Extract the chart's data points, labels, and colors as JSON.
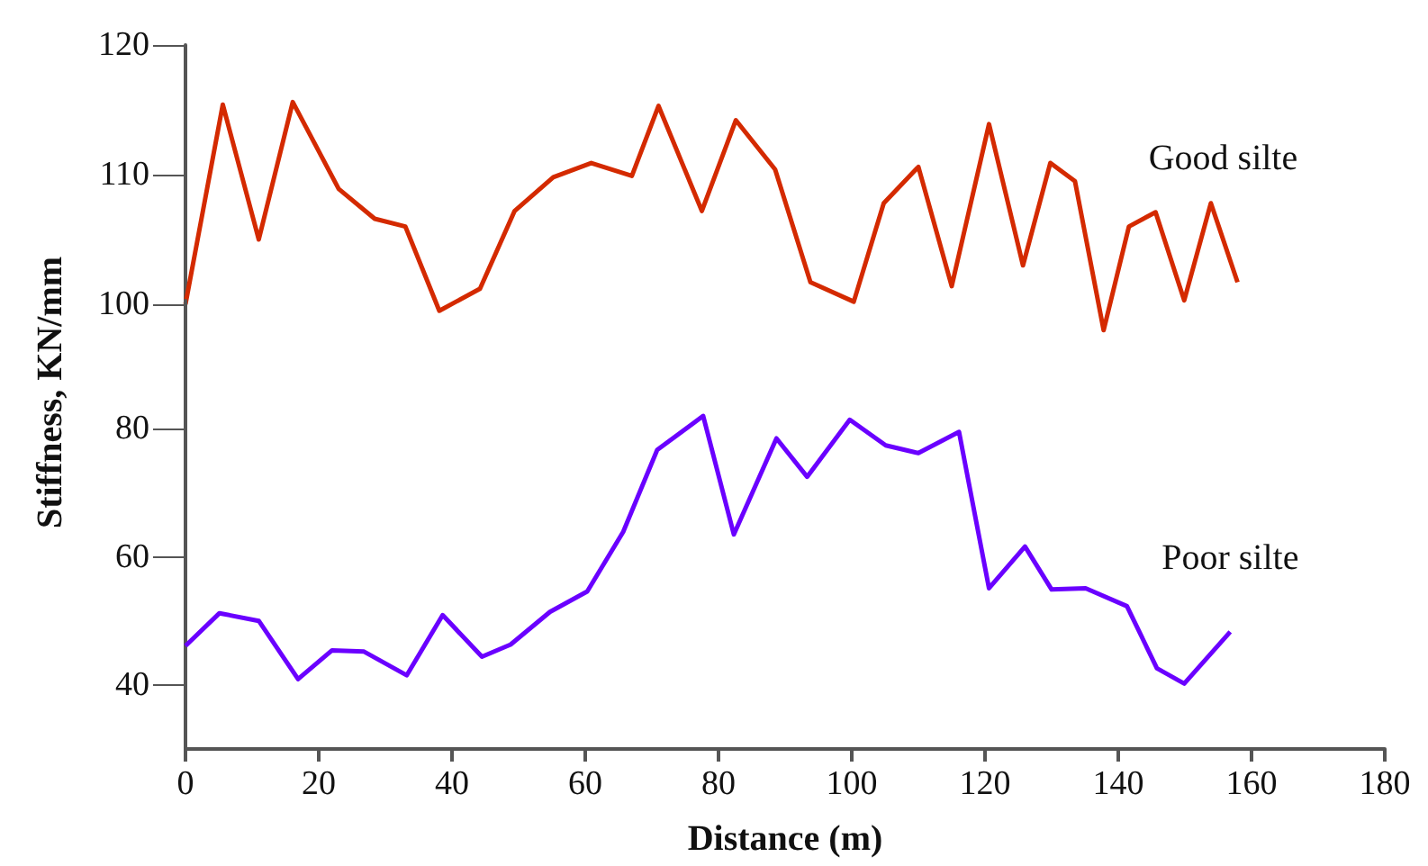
{
  "chart_data": [
    {
      "type": "line",
      "ylabel": "Stiffness, KN/mm",
      "xlim": [
        0,
        180
      ],
      "xticks": [
        0,
        20,
        40,
        60,
        80,
        100,
        120,
        140,
        160,
        180
      ],
      "ylim": [
        95,
        120
      ],
      "yticks": [
        100,
        110,
        120
      ],
      "tick_labels": "y",
      "grid": false,
      "legend": false,
      "marker": "none",
      "line_style": "solid",
      "series": [
        {
          "name": "Good silte",
          "color": "#d42a00",
          "x": [
            0,
            5.6,
            11,
            16.1,
            23,
            28.4,
            33,
            38.1,
            44.2,
            49.4,
            55.2,
            60.9,
            67,
            71,
            77.5,
            82.6,
            88.5,
            93.8,
            100.3,
            104.8,
            110,
            115,
            120.6,
            125.7,
            129.8,
            133.5,
            137.8,
            141.6,
            145.6,
            149.9,
            153.9,
            157.9
          ],
          "values": [
            100,
            115.4,
            105,
            115.6,
            108.9,
            106.6,
            106,
            99.5,
            101.2,
            107.2,
            109.8,
            110.9,
            109.9,
            115.3,
            107.2,
            114.2,
            110.4,
            101.7,
            100.2,
            107.8,
            110.6,
            101.4,
            113.9,
            103,
            110.9,
            109.5,
            98,
            106,
            107.1,
            100.3,
            107.8,
            101.7
          ]
        }
      ]
    },
    {
      "type": "line",
      "xlabel": "Distance (m)",
      "xlim": [
        0,
        180
      ],
      "xticks": [
        0,
        20,
        40,
        60,
        80,
        100,
        120,
        140,
        160,
        180
      ],
      "ylim": [
        30,
        100
      ],
      "yticks": [
        40,
        60,
        80
      ],
      "grid": false,
      "legend": false,
      "marker": "none",
      "line_style": "solid",
      "series": [
        {
          "name": "Poor silte",
          "color": "#6a00ff",
          "x": [
            0,
            5.1,
            11,
            16.9,
            22,
            26.8,
            33.2,
            38.6,
            44.5,
            48.8,
            54.7,
            60.3,
            65.7,
            70.8,
            77.7,
            82.3,
            88.7,
            93.3,
            99.7,
            105.1,
            110,
            116.1,
            120.6,
            126,
            130,
            135.1,
            141.3,
            145.8,
            149.9,
            156.8
          ],
          "values": [
            46.1,
            51.2,
            50,
            40.9,
            45.4,
            45.2,
            41.5,
            50.9,
            44.4,
            46.3,
            51.4,
            54.6,
            63.9,
            76.7,
            82,
            63.5,
            78.5,
            72.5,
            81.4,
            77.4,
            76.2,
            79.5,
            55.1,
            61.6,
            54.9,
            55.1,
            52.3,
            42.6,
            40.2,
            48.3
          ]
        }
      ]
    }
  ]
}
